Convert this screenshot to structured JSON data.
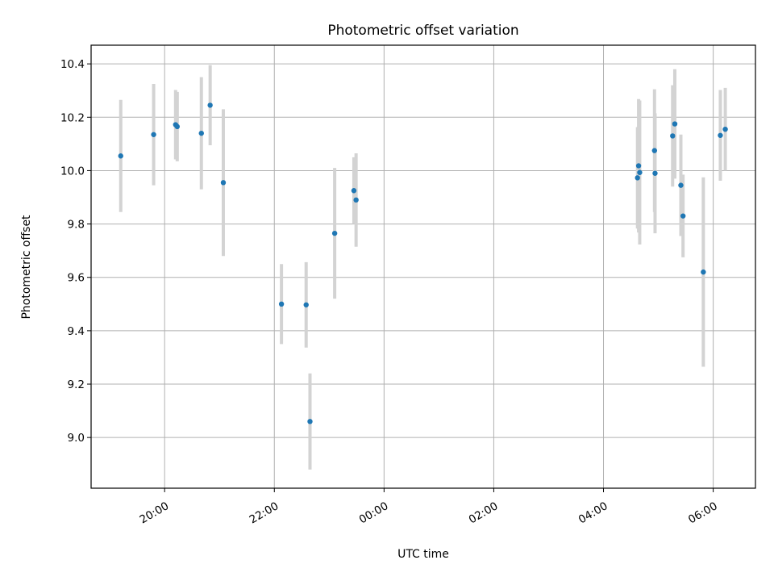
{
  "chart_data": {
    "type": "scatter",
    "title": "Photometric offset variation",
    "xlabel": "UTC time",
    "ylabel": "Photometric offset",
    "x_unit": "hours since 00:00 UTC (negative = previous evening)",
    "xlim": [
      -5.34,
      6.77
    ],
    "ylim": [
      8.81,
      10.47
    ],
    "x_ticks": [
      {
        "value": -4,
        "label": "20:00"
      },
      {
        "value": -2,
        "label": "22:00"
      },
      {
        "value": 0,
        "label": "00:00"
      },
      {
        "value": 2,
        "label": "02:00"
      },
      {
        "value": 4,
        "label": "04:00"
      },
      {
        "value": 6,
        "label": "06:00"
      }
    ],
    "y_ticks": [
      {
        "value": 9.0,
        "label": "9.0"
      },
      {
        "value": 9.2,
        "label": "9.2"
      },
      {
        "value": 9.4,
        "label": "9.4"
      },
      {
        "value": 9.6,
        "label": "9.6"
      },
      {
        "value": 9.8,
        "label": "9.8"
      },
      {
        "value": 10.0,
        "label": "10.0"
      },
      {
        "value": 10.2,
        "label": "10.2"
      },
      {
        "value": 10.4,
        "label": "10.4"
      }
    ],
    "grid": true,
    "marker_color": "#1f77b4",
    "errorbar_color": "#d3d3d3",
    "points": [
      {
        "x": -4.8,
        "y": 10.055,
        "yerr": 0.21
      },
      {
        "x": -4.2,
        "y": 10.135,
        "yerr": 0.19
      },
      {
        "x": -3.8,
        "y": 10.172,
        "yerr": 0.13
      },
      {
        "x": -3.77,
        "y": 10.165,
        "yerr": 0.13
      },
      {
        "x": -3.33,
        "y": 10.14,
        "yerr": 0.21
      },
      {
        "x": -3.17,
        "y": 10.245,
        "yerr": 0.15
      },
      {
        "x": -2.93,
        "y": 9.955,
        "yerr": 0.275
      },
      {
        "x": -1.87,
        "y": 9.5,
        "yerr": 0.15
      },
      {
        "x": -1.42,
        "y": 9.497,
        "yerr": 0.16
      },
      {
        "x": -1.35,
        "y": 9.06,
        "yerr": 0.18
      },
      {
        "x": -0.9,
        "y": 9.765,
        "yerr": 0.245
      },
      {
        "x": -0.55,
        "y": 9.925,
        "yerr": 0.125
      },
      {
        "x": -0.51,
        "y": 9.89,
        "yerr": 0.175
      },
      {
        "x": 4.62,
        "y": 9.973,
        "yerr": 0.19
      },
      {
        "x": 4.64,
        "y": 10.018,
        "yerr": 0.25
      },
      {
        "x": 4.66,
        "y": 9.993,
        "yerr": 0.27
      },
      {
        "x": 4.93,
        "y": 10.075,
        "yerr": 0.23
      },
      {
        "x": 4.94,
        "y": 9.99,
        "yerr": 0.225
      },
      {
        "x": 5.26,
        "y": 10.13,
        "yerr": 0.19
      },
      {
        "x": 5.3,
        "y": 10.175,
        "yerr": 0.205
      },
      {
        "x": 5.41,
        "y": 9.945,
        "yerr": 0.19
      },
      {
        "x": 5.45,
        "y": 9.83,
        "yerr": 0.155
      },
      {
        "x": 5.82,
        "y": 9.62,
        "yerr": 0.355
      },
      {
        "x": 6.13,
        "y": 10.132,
        "yerr": 0.17
      },
      {
        "x": 6.22,
        "y": 10.155,
        "yerr": 0.155
      }
    ]
  }
}
